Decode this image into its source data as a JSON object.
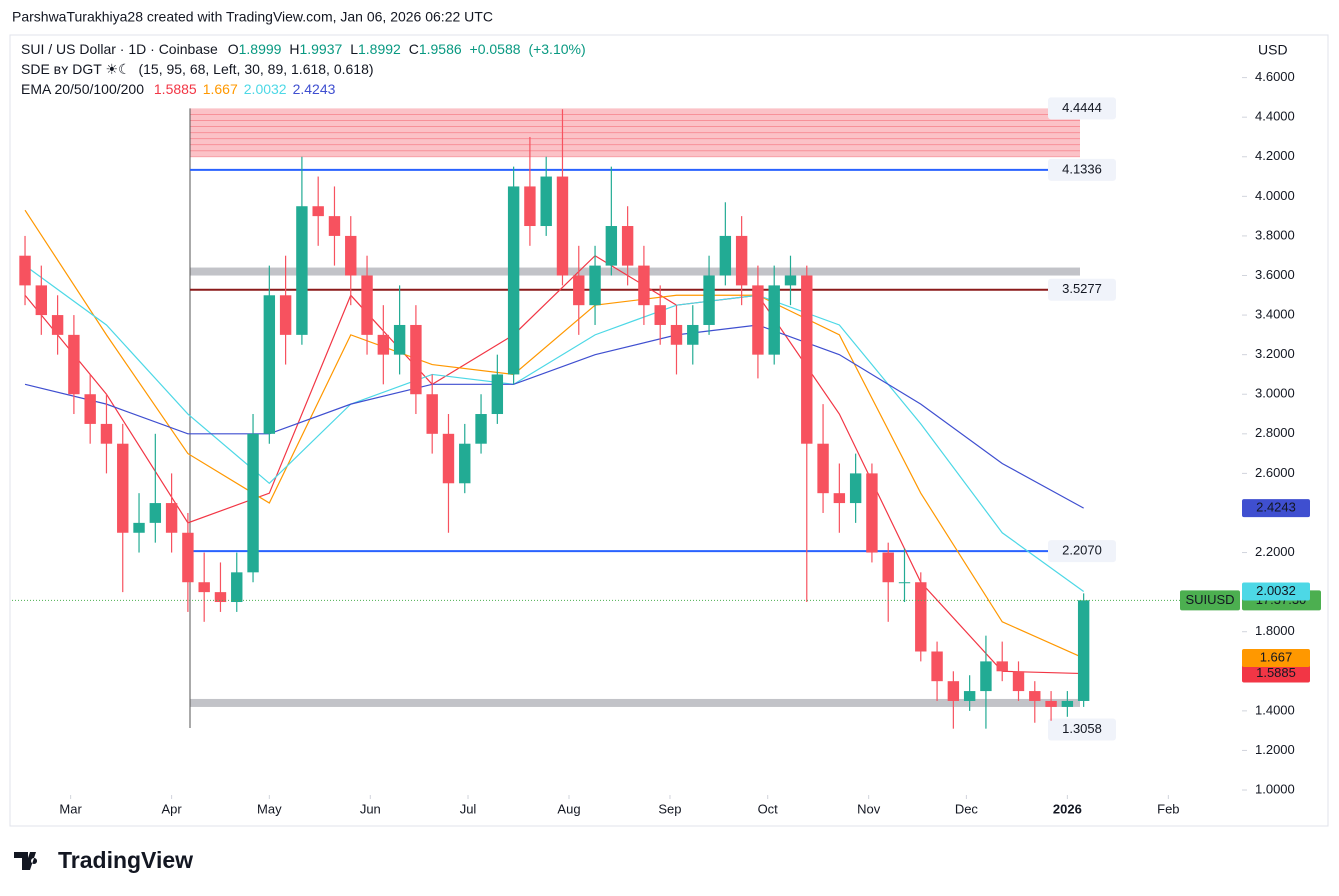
{
  "header": {
    "attribution": "ParshwaTurakhiya28 created with TradingView.com, Jan 06, 2026 06:22 UTC"
  },
  "footer": {
    "logo": "TradingView"
  },
  "chart_data": {
    "type": "candlestick",
    "symbol": "SUI / US Dollar · 1D · Coinbase",
    "ohlc": {
      "labels": [
        "O",
        "H",
        "L",
        "C"
      ],
      "values": [
        1.8999,
        1.9937,
        1.8992,
        1.9586
      ],
      "change": {
        "value": 0.0588,
        "label": "+0.0588"
      },
      "change_pct": {
        "value": 3.1,
        "label": "(+3.10%)"
      }
    },
    "indicator": {
      "name": "SDE ʙʏ DGT ☀☾",
      "params": "(15, 95, 68, Left, 30, 89, 1.618, 0.618)"
    },
    "ema_label": "EMA 20/50/100/200",
    "currency": "USD",
    "up_color": "#22ab94",
    "down_color": "#f7525f",
    "x": [
      45,
      50,
      55,
      60,
      65,
      70,
      75,
      80,
      85,
      90,
      95,
      100,
      105,
      110,
      115,
      120,
      125,
      130,
      135,
      140,
      145,
      150,
      155,
      160,
      165,
      170,
      175,
      180,
      185,
      190,
      195,
      200,
      205,
      210,
      215,
      220,
      225,
      230,
      235,
      240,
      245,
      250,
      255,
      260,
      265,
      270,
      275,
      280,
      285,
      290,
      295,
      300,
      305,
      310,
      315,
      320,
      325,
      330,
      335,
      340,
      345,
      350,
      355,
      360,
      365,
      370
    ],
    "open": [
      3.7,
      3.55,
      3.4,
      3.3,
      3.0,
      2.85,
      2.75,
      2.3,
      2.35,
      2.45,
      2.3,
      2.05,
      2.0,
      1.95,
      2.1,
      2.8,
      3.5,
      3.3,
      3.95,
      3.9,
      3.8,
      3.6,
      3.3,
      3.2,
      3.35,
      3.0,
      2.8,
      2.55,
      2.75,
      2.9,
      3.1,
      4.05,
      3.85,
      4.1,
      3.6,
      3.45,
      3.65,
      3.85,
      3.65,
      3.45,
      3.35,
      3.25,
      3.35,
      3.6,
      3.8,
      3.55,
      3.2,
      3.55,
      3.6,
      2.75,
      2.5,
      2.45,
      2.6,
      2.2,
      2.05,
      2.05,
      1.7,
      1.55,
      1.45,
      1.5,
      1.65,
      1.6,
      1.5,
      1.45,
      1.42,
      1.45
    ],
    "high": [
      3.8,
      3.65,
      3.5,
      3.4,
      3.1,
      3.0,
      2.85,
      2.5,
      2.8,
      2.6,
      2.4,
      2.2,
      2.15,
      2.2,
      2.9,
      3.65,
      3.7,
      4.2,
      4.1,
      4.05,
      3.9,
      3.7,
      3.45,
      3.55,
      3.45,
      3.1,
      2.9,
      2.85,
      3.0,
      3.2,
      4.15,
      4.3,
      4.2,
      4.44,
      3.75,
      3.75,
      4.15,
      3.95,
      3.75,
      3.55,
      3.45,
      3.45,
      3.7,
      3.97,
      3.9,
      3.65,
      3.65,
      3.7,
      3.65,
      2.95,
      2.65,
      2.7,
      2.65,
      2.25,
      2.22,
      2.1,
      1.75,
      1.6,
      1.58,
      1.78,
      1.75,
      1.65,
      1.55,
      1.5,
      1.5,
      1.9937
    ],
    "low": [
      3.45,
      3.3,
      3.2,
      2.9,
      2.75,
      2.6,
      2.0,
      2.2,
      2.25,
      2.2,
      1.9,
      1.85,
      1.9,
      1.9,
      2.05,
      2.75,
      3.15,
      3.25,
      3.75,
      3.65,
      3.45,
      3.2,
      3.05,
      3.1,
      2.9,
      2.7,
      2.3,
      2.5,
      2.7,
      2.85,
      3.05,
      3.75,
      3.8,
      3.55,
      3.3,
      3.35,
      3.6,
      3.55,
      3.35,
      3.25,
      3.1,
      3.15,
      3.3,
      3.55,
      3.45,
      3.08,
      3.15,
      3.45,
      1.95,
      2.4,
      2.3,
      2.35,
      2.15,
      1.85,
      1.95,
      1.65,
      1.45,
      1.31,
      1.4,
      1.31,
      1.55,
      1.45,
      1.34,
      1.35,
      1.37,
      1.42
    ],
    "close": [
      3.55,
      3.4,
      3.3,
      3.0,
      2.85,
      2.75,
      2.3,
      2.35,
      2.45,
      2.3,
      2.05,
      2.0,
      1.95,
      2.1,
      2.8,
      3.5,
      3.3,
      3.95,
      3.9,
      3.8,
      3.6,
      3.3,
      3.2,
      3.35,
      3.0,
      2.8,
      2.55,
      2.75,
      2.9,
      3.1,
      4.05,
      3.85,
      4.1,
      3.6,
      3.45,
      3.65,
      3.85,
      3.65,
      3.45,
      3.35,
      3.25,
      3.35,
      3.6,
      3.8,
      3.55,
      3.2,
      3.55,
      3.6,
      2.75,
      2.5,
      2.45,
      2.6,
      2.2,
      2.05,
      2.05,
      1.7,
      1.55,
      1.45,
      1.5,
      1.65,
      1.6,
      1.5,
      1.45,
      1.42,
      1.45,
      1.9586
    ],
    "xlim": [
      41,
      418
    ],
    "xticks": [
      {
        "value": 59,
        "label": "Mar"
      },
      {
        "value": 90,
        "label": "Apr"
      },
      {
        "value": 120,
        "label": "May"
      },
      {
        "value": 151,
        "label": "Jun"
      },
      {
        "value": 181,
        "label": "Jul"
      },
      {
        "value": 212,
        "label": "Aug"
      },
      {
        "value": 243,
        "label": "Sep"
      },
      {
        "value": 273,
        "label": "Oct"
      },
      {
        "value": 304,
        "label": "Nov"
      },
      {
        "value": 334,
        "label": "Dec"
      },
      {
        "value": 365,
        "label": "2026"
      },
      {
        "value": 396,
        "label": "Feb"
      }
    ],
    "ylim": [
      0.99,
      4.79
    ],
    "yticks": [
      {
        "value": 1.0,
        "label": "1.0000"
      },
      {
        "value": 1.2,
        "label": "1.2000"
      },
      {
        "value": 1.4,
        "label": "1.4000"
      },
      {
        "value": 1.6,
        "label": "1.6000"
      },
      {
        "value": 1.8,
        "label": "1.8000"
      },
      {
        "value": 2.0,
        "label": "2.0000"
      },
      {
        "value": 2.2,
        "label": "2.2000"
      },
      {
        "value": 2.4,
        "label": "2.4000"
      },
      {
        "value": 2.6,
        "label": "2.6000"
      },
      {
        "value": 2.8,
        "label": "2.8000"
      },
      {
        "value": 3.0,
        "label": "3.0000"
      },
      {
        "value": 3.2,
        "label": "3.2000"
      },
      {
        "value": 3.4,
        "label": "3.4000"
      },
      {
        "value": 3.6,
        "label": "3.6000"
      },
      {
        "value": 3.8,
        "label": "3.8000"
      },
      {
        "value": 4.0,
        "label": "4.0000"
      },
      {
        "value": 4.2,
        "label": "4.2000"
      },
      {
        "value": 4.4,
        "label": "4.4000"
      },
      {
        "value": 4.6,
        "label": "4.6000"
      }
    ],
    "ema": {
      "x": [
        45,
        70,
        95,
        120,
        145,
        170,
        195,
        220,
        245,
        270,
        295,
        320,
        345,
        370
      ],
      "series": [
        {
          "color": "#f23645",
          "label_text_color": "#ffffff",
          "values": [
            3.5,
            3.0,
            2.35,
            2.5,
            3.5,
            3.05,
            3.3,
            3.7,
            3.45,
            3.5,
            2.9,
            2.05,
            1.6,
            1.5885
          ]
        },
        {
          "color": "#ff9800",
          "label_text_color": "#ffffff",
          "values": [
            3.93,
            3.3,
            2.7,
            2.45,
            3.3,
            3.15,
            3.1,
            3.45,
            3.5,
            3.5,
            3.3,
            2.5,
            1.85,
            1.667
          ]
        },
        {
          "color": "#4dd8e6",
          "label_text_color": "#131722",
          "values": [
            3.65,
            3.35,
            2.9,
            2.55,
            2.95,
            3.1,
            3.05,
            3.3,
            3.45,
            3.5,
            3.35,
            2.85,
            2.3,
            2.0032
          ]
        },
        {
          "color": "#3f4fd0",
          "label_text_color": "#ffffff",
          "values": [
            3.05,
            2.95,
            2.8,
            2.8,
            2.95,
            3.05,
            3.05,
            3.2,
            3.3,
            3.35,
            3.2,
            2.95,
            2.65,
            2.4243
          ]
        }
      ]
    },
    "zone": {
      "range": [
        4.2,
        4.4444
      ],
      "color": "rgba(242,54,69,0.3)"
    },
    "bands": [
      3.62,
      1.44
    ],
    "levels": [
      {
        "value": 4.4444,
        "label": "4.4444"
      },
      {
        "value": 4.1336,
        "label": "4.1336",
        "line": "#2962ff"
      },
      {
        "value": 3.5277,
        "label": "3.5277",
        "line": "#8b1a1a"
      },
      {
        "value": 2.207,
        "label": "2.2070",
        "line": "#2962ff"
      },
      {
        "value": 1.3058,
        "label": "1.3058"
      }
    ],
    "last_price": {
      "symbol": "SUIUSD",
      "countdown": "17:37:30",
      "color": "#4caf50"
    }
  }
}
